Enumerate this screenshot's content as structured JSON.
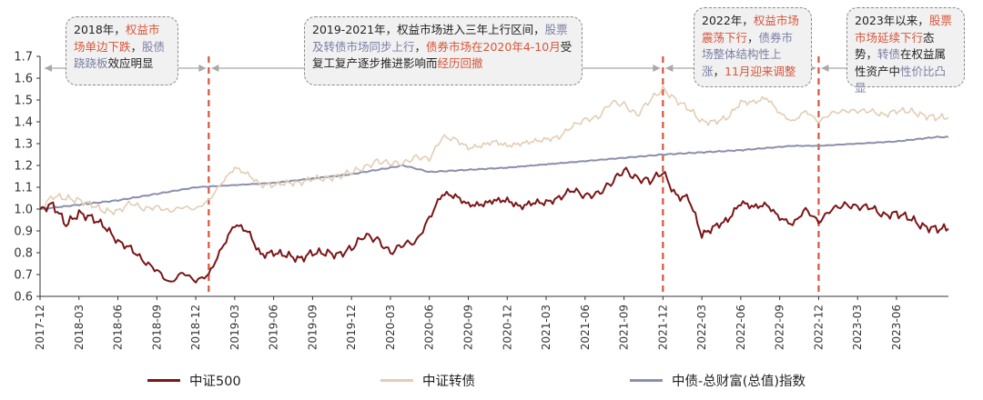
{
  "chart_data": {
    "type": "line",
    "title": "",
    "xlabel": "",
    "ylabel": "",
    "ylim": [
      0.6,
      1.7
    ],
    "yticks": [
      "0.6",
      "0.7",
      "0.8",
      "0.9",
      "1.0",
      "1.1",
      "1.2",
      "1.3",
      "1.4",
      "1.5",
      "1.6",
      "1.7"
    ],
    "xticks": [
      "2017-12",
      "2018-03",
      "2018-06",
      "2018-09",
      "2018-12",
      "2019-03",
      "2019-06",
      "2019-09",
      "2019-12",
      "2020-03",
      "2020-06",
      "2020-09",
      "2020-12",
      "2021-03",
      "2021-06",
      "2021-09",
      "2021-12",
      "2022-03",
      "2022-06",
      "2022-09",
      "2022-12",
      "2023-03",
      "2023-06"
    ],
    "grid": false,
    "legend_position": "bottom",
    "colors": {
      "csi500": "#7b1618",
      "cbond": "#e3cdb4",
      "bond": "#8b8fab",
      "divider": "#d8553a",
      "highlight": "#d8553a",
      "accent": "#7b7fa3"
    },
    "dividers": [
      "2019-01",
      "2021-12",
      "2022-12"
    ],
    "series": [
      {
        "name": "中证500",
        "x": [
          "2017-12",
          "2018-01",
          "2018-02",
          "2018-03",
          "2018-04",
          "2018-05",
          "2018-06",
          "2018-07",
          "2018-08",
          "2018-09",
          "2018-10",
          "2018-11",
          "2018-12",
          "2019-01",
          "2019-02",
          "2019-03",
          "2019-04",
          "2019-05",
          "2019-06",
          "2019-07",
          "2019-08",
          "2019-09",
          "2019-10",
          "2019-11",
          "2019-12",
          "2020-01",
          "2020-02",
          "2020-03",
          "2020-04",
          "2020-05",
          "2020-06",
          "2020-07",
          "2020-08",
          "2020-09",
          "2020-10",
          "2020-11",
          "2020-12",
          "2021-01",
          "2021-02",
          "2021-03",
          "2021-04",
          "2021-05",
          "2021-06",
          "2021-07",
          "2021-08",
          "2021-09",
          "2021-10",
          "2021-11",
          "2021-12",
          "2022-01",
          "2022-02",
          "2022-03",
          "2022-04",
          "2022-05",
          "2022-06",
          "2022-07",
          "2022-08",
          "2022-09",
          "2022-10",
          "2022-11",
          "2022-12",
          "2023-01",
          "2023-02",
          "2023-03",
          "2023-04",
          "2023-05",
          "2023-06",
          "2023-07",
          "2023-08",
          "2023-09"
        ],
        "values": [
          1.0,
          1.02,
          0.93,
          0.98,
          0.96,
          0.92,
          0.85,
          0.82,
          0.76,
          0.72,
          0.66,
          0.71,
          0.67,
          0.7,
          0.82,
          0.93,
          0.9,
          0.79,
          0.8,
          0.79,
          0.77,
          0.8,
          0.8,
          0.79,
          0.82,
          0.88,
          0.86,
          0.8,
          0.84,
          0.85,
          0.96,
          1.07,
          1.06,
          1.02,
          1.02,
          1.04,
          1.04,
          1.01,
          1.03,
          1.03,
          1.05,
          1.09,
          1.06,
          1.07,
          1.12,
          1.18,
          1.14,
          1.13,
          1.17,
          1.06,
          1.05,
          0.88,
          0.92,
          0.95,
          1.03,
          1.01,
          1.02,
          0.96,
          0.93,
          1.0,
          0.94,
          1.0,
          1.02,
          1.01,
          1.01,
          0.97,
          0.98,
          0.96,
          0.92,
          0.91
        ]
      },
      {
        "name": "中证转债",
        "x": [
          "2017-12",
          "2018-01",
          "2018-02",
          "2018-03",
          "2018-04",
          "2018-05",
          "2018-06",
          "2018-07",
          "2018-08",
          "2018-09",
          "2018-10",
          "2018-11",
          "2018-12",
          "2019-01",
          "2019-02",
          "2019-03",
          "2019-04",
          "2019-05",
          "2019-06",
          "2019-07",
          "2019-08",
          "2019-09",
          "2019-10",
          "2019-11",
          "2019-12",
          "2020-01",
          "2020-02",
          "2020-03",
          "2020-04",
          "2020-05",
          "2020-06",
          "2020-07",
          "2020-08",
          "2020-09",
          "2020-10",
          "2020-11",
          "2020-12",
          "2021-01",
          "2021-02",
          "2021-03",
          "2021-04",
          "2021-05",
          "2021-06",
          "2021-07",
          "2021-08",
          "2021-09",
          "2021-10",
          "2021-11",
          "2021-12",
          "2022-01",
          "2022-02",
          "2022-03",
          "2022-04",
          "2022-05",
          "2022-06",
          "2022-07",
          "2022-08",
          "2022-09",
          "2022-10",
          "2022-11",
          "2022-12",
          "2023-01",
          "2023-02",
          "2023-03",
          "2023-04",
          "2023-05",
          "2023-06",
          "2023-07",
          "2023-08",
          "2023-09"
        ],
        "values": [
          1.0,
          1.06,
          1.05,
          1.04,
          1.02,
          0.99,
          0.99,
          1.03,
          1.0,
          1.01,
          0.99,
          1.01,
          1.0,
          1.04,
          1.12,
          1.19,
          1.16,
          1.11,
          1.11,
          1.12,
          1.12,
          1.14,
          1.14,
          1.15,
          1.17,
          1.19,
          1.22,
          1.21,
          1.21,
          1.24,
          1.23,
          1.33,
          1.32,
          1.28,
          1.29,
          1.31,
          1.29,
          1.3,
          1.31,
          1.32,
          1.33,
          1.38,
          1.41,
          1.42,
          1.49,
          1.48,
          1.43,
          1.5,
          1.55,
          1.5,
          1.46,
          1.4,
          1.4,
          1.42,
          1.49,
          1.49,
          1.51,
          1.44,
          1.4,
          1.45,
          1.4,
          1.44,
          1.45,
          1.45,
          1.45,
          1.43,
          1.45,
          1.45,
          1.43,
          1.42
        ]
      },
      {
        "name": "中债-总财富(总值)指数",
        "x": [
          "2017-12",
          "2018-06",
          "2018-12",
          "2019-06",
          "2019-12",
          "2020-04",
          "2020-06",
          "2020-12",
          "2021-06",
          "2021-12",
          "2022-06",
          "2022-10",
          "2022-12",
          "2023-06",
          "2023-09"
        ],
        "values": [
          1.0,
          1.04,
          1.1,
          1.12,
          1.16,
          1.2,
          1.17,
          1.19,
          1.22,
          1.25,
          1.27,
          1.29,
          1.29,
          1.31,
          1.33
        ]
      }
    ]
  },
  "annotations": [
    {
      "segments": [
        {
          "text": "2018年，",
          "color": "dark"
        },
        {
          "text": "权益市场单边下跌",
          "color": "red"
        },
        {
          "text": "，",
          "color": "dark"
        },
        {
          "text": "股债跷跷板",
          "color": "blue"
        },
        {
          "text": "效应明显",
          "color": "dark"
        }
      ]
    },
    {
      "segments": [
        {
          "text": "2019-2021年，权益市场进入三年上行区间，",
          "color": "dark"
        },
        {
          "text": "股票及转债市场同步上行",
          "color": "blue"
        },
        {
          "text": "，",
          "color": "dark"
        },
        {
          "text": "债券市场在2020年4-10月",
          "color": "red"
        },
        {
          "text": "受复工复产逐步推进影响而",
          "color": "dark"
        },
        {
          "text": "经历回撤",
          "color": "red"
        }
      ]
    },
    {
      "segments": [
        {
          "text": "2022年，",
          "color": "dark"
        },
        {
          "text": "权益市场震荡下行",
          "color": "red"
        },
        {
          "text": "，",
          "color": "dark"
        },
        {
          "text": "债券市场整体结构性上涨",
          "color": "blue"
        },
        {
          "text": "，",
          "color": "dark"
        },
        {
          "text": "11月迎来调整",
          "color": "red"
        }
      ]
    },
    {
      "segments": [
        {
          "text": "2023年以来，",
          "color": "dark"
        },
        {
          "text": "股票市场延续下行",
          "color": "red"
        },
        {
          "text": "态势，",
          "color": "dark"
        },
        {
          "text": "转债",
          "color": "blue"
        },
        {
          "text": "在权益属性资产中",
          "color": "dark"
        },
        {
          "text": "性价比凸显",
          "color": "blue"
        }
      ]
    }
  ],
  "legend": [
    {
      "label": "中证500",
      "color": "#7b1618"
    },
    {
      "label": "中证转债",
      "color": "#e3cdb4"
    },
    {
      "label": "中债-总财富(总值)指数",
      "color": "#8b8fab"
    }
  ]
}
